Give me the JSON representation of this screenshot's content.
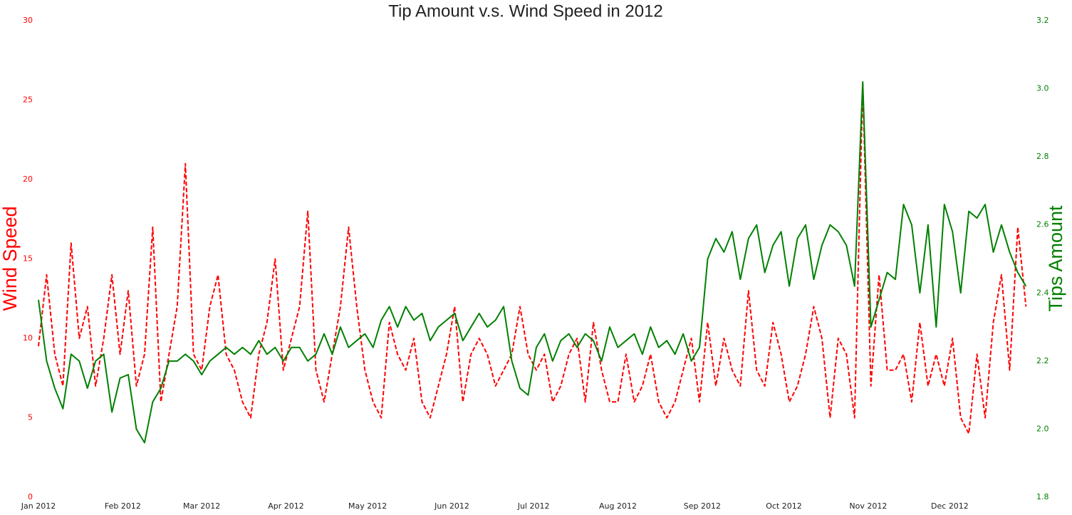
{
  "chart_data": {
    "type": "line",
    "title": "Tip Amount v.s. Wind Speed in 2012",
    "ylabel": "Wind Speed",
    "y2label": "Tips Amount",
    "x": [
      0,
      3,
      6,
      9,
      12,
      15,
      18,
      21,
      24,
      27,
      30,
      33,
      36,
      39,
      42,
      45,
      48,
      51,
      54,
      57,
      60,
      63,
      66,
      69,
      72,
      75,
      78,
      81,
      84,
      87,
      90,
      93,
      96,
      99,
      102,
      105,
      108,
      111,
      114,
      117,
      120,
      123,
      126,
      129,
      132,
      135,
      138,
      141,
      144,
      147,
      150,
      153,
      156,
      159,
      162,
      165,
      168,
      171,
      174,
      177,
      180,
      183,
      186,
      189,
      192,
      195,
      198,
      201,
      204,
      207,
      210,
      213,
      216,
      219,
      222,
      225,
      228,
      231,
      234,
      237,
      240,
      243,
      246,
      249,
      252,
      255,
      258,
      261,
      264,
      267,
      270,
      273,
      276,
      279,
      282,
      285,
      288,
      291,
      294,
      297,
      300,
      303,
      306,
      309,
      312,
      315,
      318,
      321,
      324,
      327,
      330,
      333,
      336,
      339,
      342,
      345,
      348,
      351,
      354,
      357,
      360,
      363
    ],
    "xlim": [
      0,
      365
    ],
    "xticks": [
      {
        "value": 0,
        "label": "Jan 2012"
      },
      {
        "value": 31,
        "label": "Feb 2012"
      },
      {
        "value": 60,
        "label": "Mar 2012"
      },
      {
        "value": 91,
        "label": "Apr 2012"
      },
      {
        "value": 121,
        "label": "May 2012"
      },
      {
        "value": 152,
        "label": "Jun 2012"
      },
      {
        "value": 182,
        "label": "Jul 2012"
      },
      {
        "value": 213,
        "label": "Aug 2012"
      },
      {
        "value": 244,
        "label": "Sep 2012"
      },
      {
        "value": 274,
        "label": "Oct 2012"
      },
      {
        "value": 305,
        "label": "Nov 2012"
      },
      {
        "value": 335,
        "label": "Dec 2012"
      }
    ],
    "ylim": [
      0,
      30
    ],
    "yticks": [
      0,
      5,
      10,
      15,
      20,
      25,
      30
    ],
    "y2lim": [
      1.8,
      3.2
    ],
    "y2ticks": [
      1.8,
      {
        "value": 2.0,
        "label": "2.0"
      },
      2.2,
      2.4,
      2.6,
      2.8,
      {
        "value": 3.0,
        "label": "3.0"
      },
      3.2
    ],
    "series": [
      {
        "color": "#ff0000",
        "linestyle": "dashed",
        "axis": "y",
        "values": [
          9.5,
          14,
          9,
          7,
          16,
          10,
          12,
          7,
          10,
          14,
          9,
          13,
          7,
          9,
          17,
          6,
          9,
          12,
          21,
          9,
          8,
          12,
          14,
          9,
          8,
          6,
          5,
          9,
          11,
          15,
          8,
          10,
          12,
          18,
          8,
          6,
          9,
          12,
          17,
          12,
          8,
          6,
          5,
          11,
          9,
          8,
          10,
          6,
          5,
          7,
          9,
          12,
          6,
          9,
          10,
          9,
          7,
          8,
          9,
          12,
          9,
          8,
          9,
          6,
          7,
          9,
          10,
          6,
          11,
          8,
          6,
          6,
          9,
          6,
          7,
          9,
          6,
          5,
          6,
          8,
          10,
          6,
          11,
          7,
          10,
          8,
          7,
          13,
          8,
          7,
          11,
          9,
          6,
          7,
          9,
          12,
          10,
          5,
          10,
          9,
          5,
          26,
          7,
          14,
          8,
          8,
          9,
          6,
          11,
          7,
          9,
          7,
          10,
          5,
          4,
          9,
          5,
          11,
          14,
          8,
          17,
          12
        ]
      },
      {
        "color": "#008000",
        "linestyle": "solid",
        "axis": "y2",
        "values": [
          2.38,
          2.2,
          2.12,
          2.06,
          2.22,
          2.2,
          2.12,
          2.2,
          2.22,
          2.05,
          2.15,
          2.16,
          2.0,
          1.96,
          2.08,
          2.12,
          2.2,
          2.2,
          2.22,
          2.2,
          2.16,
          2.2,
          2.22,
          2.24,
          2.22,
          2.24,
          2.22,
          2.26,
          2.22,
          2.24,
          2.2,
          2.24,
          2.24,
          2.2,
          2.22,
          2.28,
          2.22,
          2.3,
          2.24,
          2.26,
          2.28,
          2.24,
          2.32,
          2.36,
          2.3,
          2.36,
          2.32,
          2.34,
          2.26,
          2.3,
          2.32,
          2.34,
          2.26,
          2.3,
          2.34,
          2.3,
          2.32,
          2.36,
          2.2,
          2.12,
          2.1,
          2.24,
          2.28,
          2.2,
          2.26,
          2.28,
          2.24,
          2.28,
          2.26,
          2.2,
          2.3,
          2.24,
          2.26,
          2.28,
          2.22,
          2.3,
          2.24,
          2.26,
          2.22,
          2.28,
          2.2,
          2.24,
          2.5,
          2.56,
          2.52,
          2.58,
          2.44,
          2.56,
          2.6,
          2.46,
          2.54,
          2.58,
          2.42,
          2.56,
          2.6,
          2.44,
          2.54,
          2.6,
          2.58,
          2.54,
          2.42,
          3.02,
          2.3,
          2.38,
          2.46,
          2.44,
          2.66,
          2.6,
          2.4,
          2.6,
          2.3,
          2.66,
          2.58,
          2.4,
          2.64,
          2.62,
          2.66,
          2.52,
          2.6,
          2.52,
          2.46,
          2.42
        ]
      }
    ]
  }
}
